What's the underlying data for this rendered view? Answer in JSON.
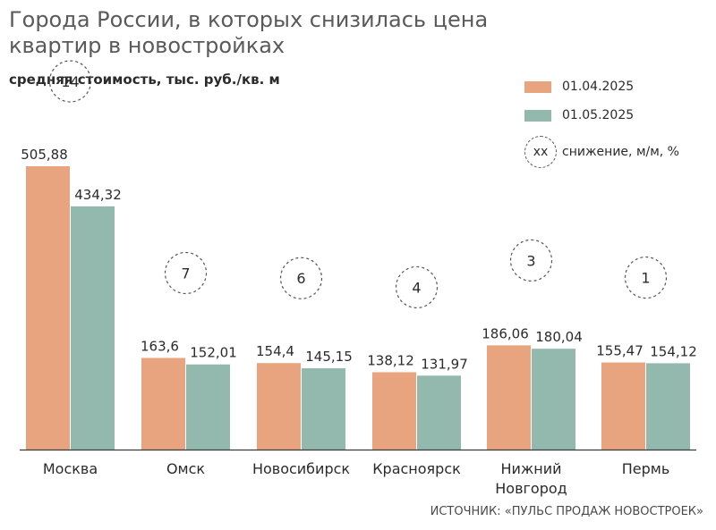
{
  "title": "Города России, в которых снизилась цена квартир в новостройках",
  "subtitle": "средняя стоимость, тыс. руб./кв. м",
  "source": "ИСТОЧНИК: «ПУЛЬС ПРОДАЖ НОВОСТРОЕК»",
  "legend": {
    "series1": "01.04.2025",
    "series2": "01.05.2025",
    "decline_symbol": "xx",
    "decline_label": "снижение, м/м, %"
  },
  "colors": {
    "series1": "#e7a47e",
    "series2": "#93b9ae",
    "axis": "#3a3a3a",
    "text": "#2b2b2b",
    "circle": "#555555"
  },
  "chart_data": {
    "type": "bar",
    "categories": [
      "Москва",
      "Омск",
      "Новосибирск",
      "Красноярск",
      "Нижний Новгород",
      "Пермь"
    ],
    "category_lines": [
      [
        "Москва"
      ],
      [
        "Омск"
      ],
      [
        "Новосибирск"
      ],
      [
        "Красноярск"
      ],
      [
        "Нижний",
        "Новгород"
      ],
      [
        "Пермь"
      ]
    ],
    "series": [
      {
        "name": "01.04.2025",
        "values": [
          505.88,
          163.6,
          154.4,
          138.12,
          186.06,
          155.47
        ],
        "labels": [
          "505,88",
          "163,6",
          "154,4",
          "138,12",
          "186,06",
          "155,47"
        ]
      },
      {
        "name": "01.05.2025",
        "values": [
          434.32,
          152.01,
          145.15,
          131.97,
          180.04,
          154.12
        ],
        "labels": [
          "434,32",
          "152,01",
          "145,15",
          "131,97",
          "180,04",
          "154,12"
        ]
      }
    ],
    "decline_pct": [
      "14",
      "7",
      "6",
      "4",
      "3",
      "1"
    ],
    "ylim": [
      0,
      505.88
    ],
    "grid": false
  }
}
